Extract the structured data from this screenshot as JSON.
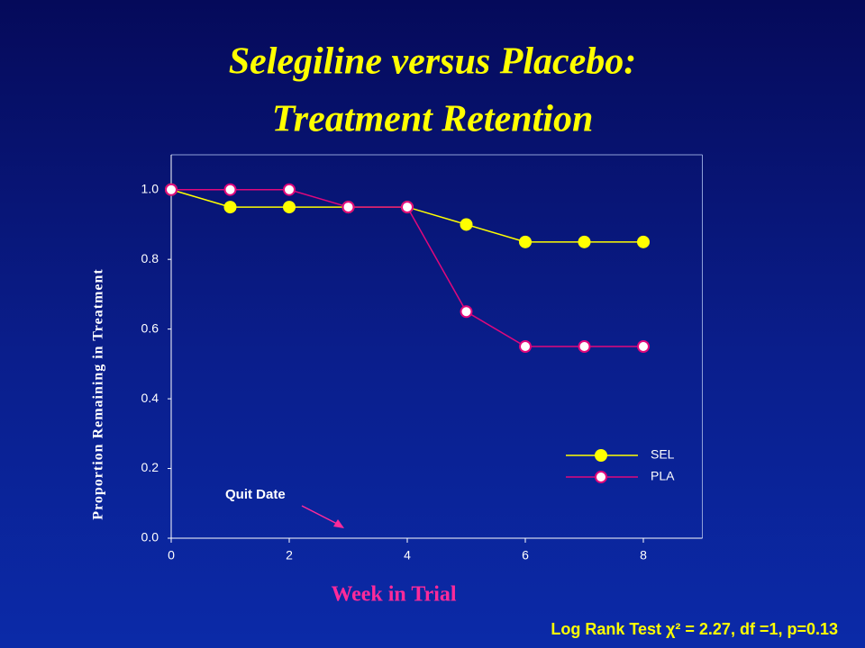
{
  "chart_data": {
    "type": "line",
    "title": [
      "Selegiline versus Placebo:",
      "Treatment Retention"
    ],
    "x_label": "Week in Trial",
    "y_label": "Proportion Remaining in Treatment",
    "annotation": "Quit Date",
    "footer": "Log Rank Test χ² = 2.27, df =1, p=0.13",
    "x": [
      0,
      1,
      2,
      3,
      4,
      5,
      6,
      7,
      8
    ],
    "series": [
      {
        "name": "SEL",
        "color": "#ffff00",
        "marker_fill": "#ffff00",
        "values": [
          1.0,
          0.95,
          0.95,
          0.95,
          0.95,
          0.9,
          0.85,
          0.85,
          0.85
        ]
      },
      {
        "name": "PLA",
        "color": "#e0087c",
        "marker_fill": "#ffffff",
        "values": [
          1.0,
          1.0,
          1.0,
          0.95,
          0.95,
          0.65,
          0.55,
          0.55,
          0.55
        ]
      }
    ],
    "xlim": [
      0,
      9
    ],
    "ylim": [
      0,
      1.1
    ],
    "xticks": [
      0,
      2,
      4,
      6,
      8
    ],
    "yticks": [
      {
        "value": 0,
        "label": "0.0"
      },
      0.2,
      0.4,
      0.6,
      0.8,
      {
        "value": 1,
        "label": "1.0"
      }
    ],
    "legend": "lower-right"
  }
}
